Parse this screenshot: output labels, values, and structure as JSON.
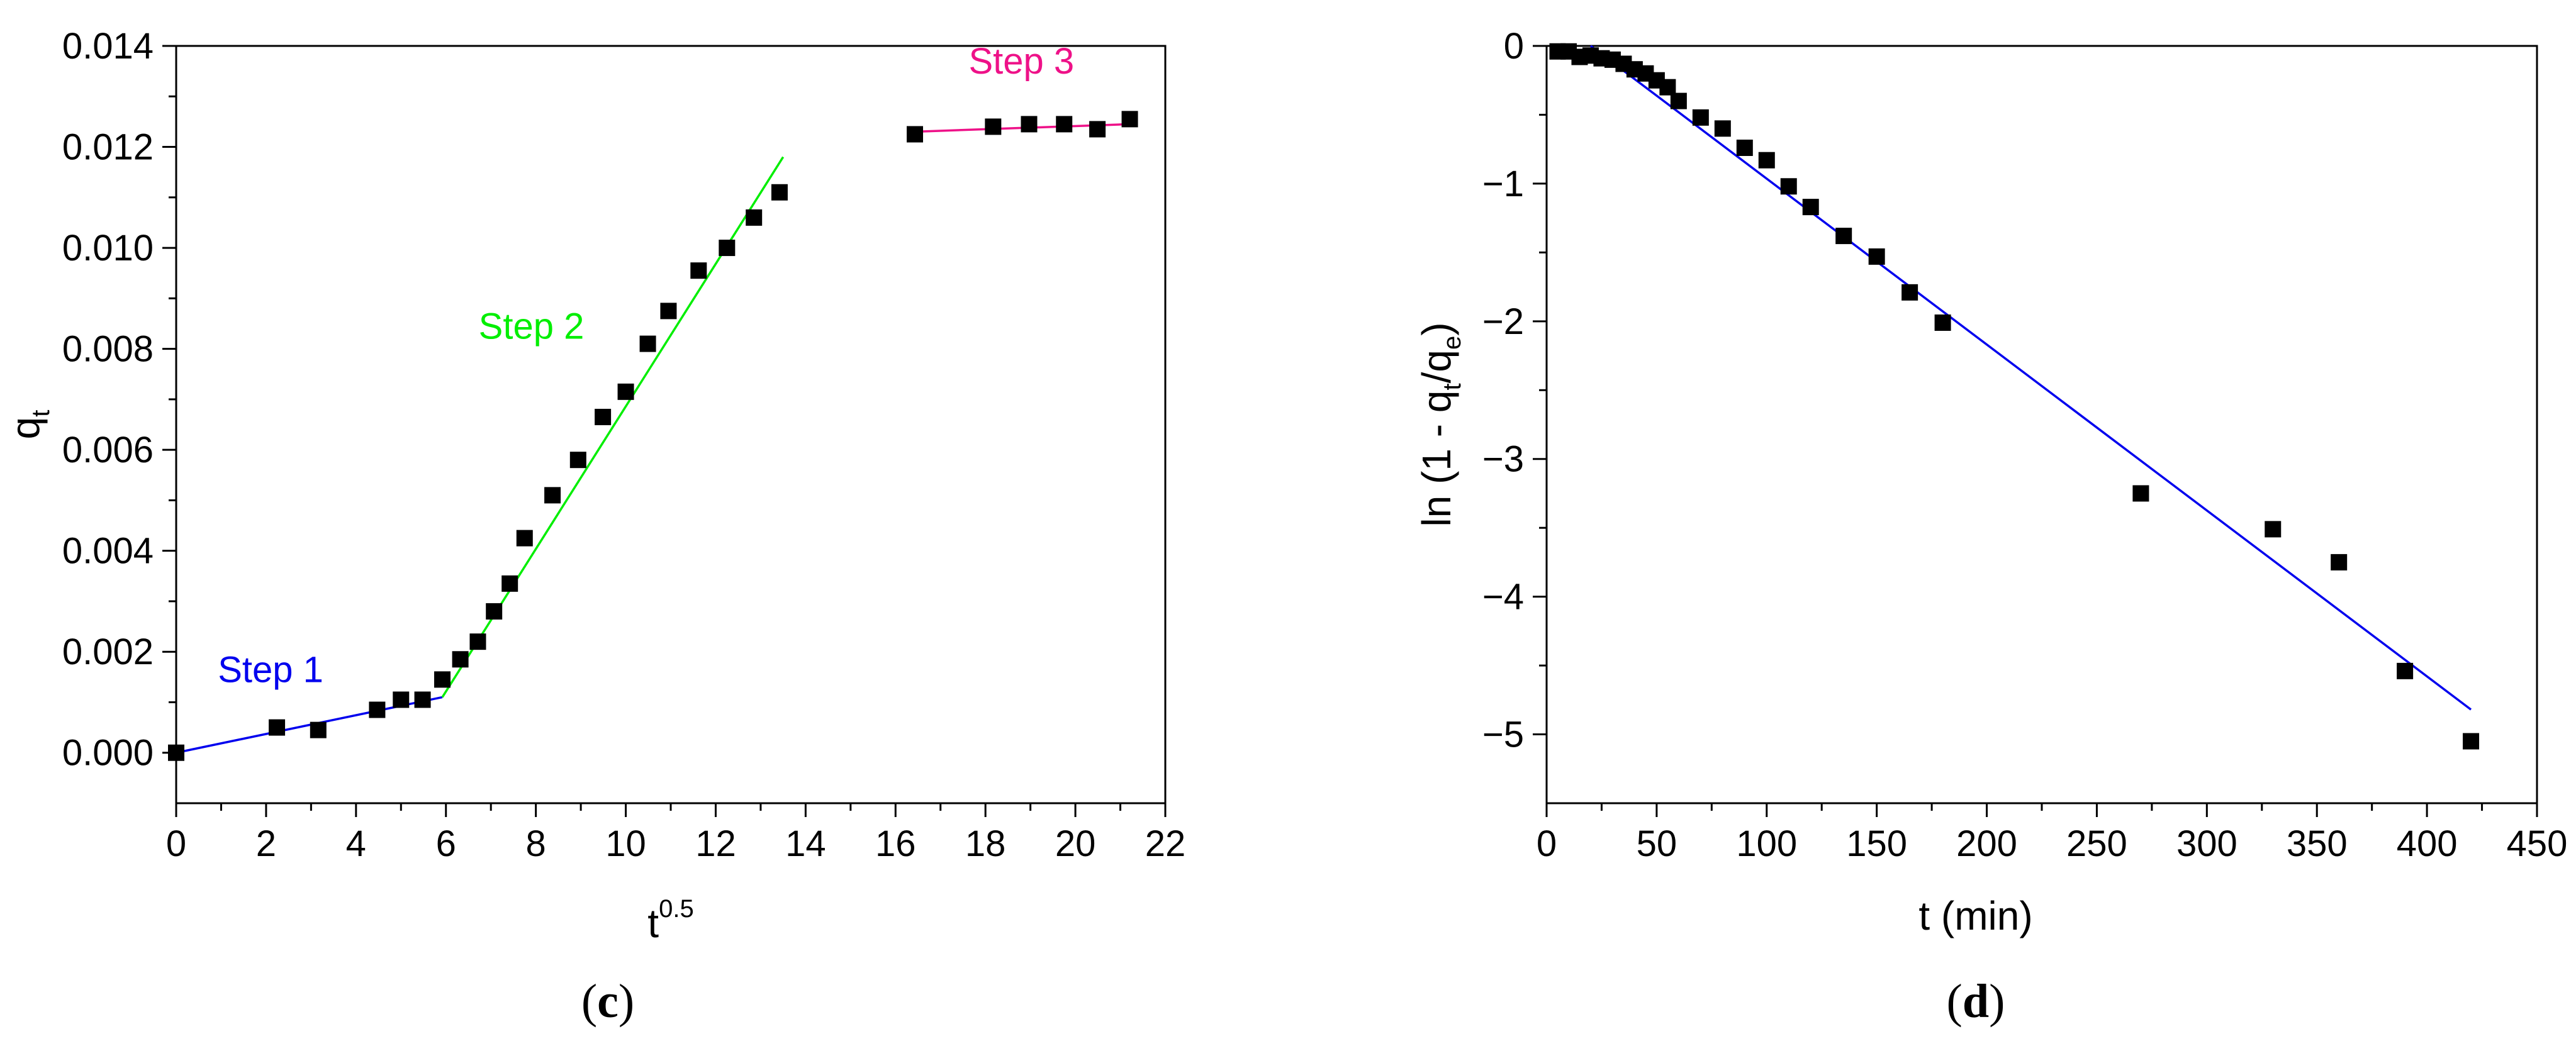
{
  "chart_data": [
    {
      "type": "scatter",
      "panel_label": "c",
      "xlabel_base": "t",
      "xlabel_sup": "0.5",
      "ylabel_base": "q",
      "ylabel_sub": "t",
      "xlim": [
        0,
        22
      ],
      "ylim": [
        -0.001,
        0.014
      ],
      "xticks": [
        0,
        2,
        4,
        6,
        8,
        10,
        12,
        14,
        16,
        18,
        20,
        22
      ],
      "yticks": [
        0,
        0.002,
        0.004,
        0.006,
        0.008,
        0.01,
        0.012,
        0.014
      ],
      "ytick_labels": [
        "0.000",
        "0.002",
        "0.004",
        "0.006",
        "0.008",
        "0.010",
        "0.012",
        "0.014"
      ],
      "points": {
        "x": [
          0,
          2.24,
          3.16,
          4.47,
          5.0,
          5.48,
          5.92,
          6.32,
          6.71,
          7.07,
          7.42,
          7.75,
          8.37,
          8.94,
          9.49,
          10.0,
          10.49,
          10.95,
          11.62,
          12.25,
          12.85,
          13.42,
          16.43,
          18.17,
          18.97,
          19.75,
          20.49,
          21.21
        ],
        "y": [
          0.0,
          0.0005,
          0.00045,
          0.00085,
          0.00105,
          0.00105,
          0.00145,
          0.00185,
          0.0022,
          0.0028,
          0.00335,
          0.00425,
          0.0051,
          0.0058,
          0.00665,
          0.00715,
          0.0081,
          0.00875,
          0.00955,
          0.01,
          0.0106,
          0.0111,
          0.01225,
          0.0124,
          0.01245,
          0.01245,
          0.01235,
          0.01255
        ]
      },
      "fits": [
        {
          "name": "Step 1",
          "color": "#0000ee",
          "x": [
            0,
            5.92
          ],
          "y": [
            0.0,
            0.0011
          ],
          "label_at": [
            2.1,
            0.0014
          ]
        },
        {
          "name": "Step 2",
          "color": "#00ee00",
          "x": [
            5.92,
            13.5
          ],
          "y": [
            0.0011,
            0.0118
          ],
          "label_at": [
            7.9,
            0.0082
          ]
        },
        {
          "name": "Step 3",
          "color": "#ee1188",
          "x": [
            16.4,
            21.2
          ],
          "y": [
            0.0123,
            0.01245
          ],
          "label_at": [
            18.8,
            0.01345
          ]
        }
      ]
    },
    {
      "type": "scatter",
      "panel_label": "d",
      "xlabel": "t (min)",
      "ylabel_parts": [
        "ln (1 - q",
        "t",
        "/q",
        "e",
        ")"
      ],
      "xlim": [
        0,
        450
      ],
      "ylim": [
        -5.5,
        0
      ],
      "xticks": [
        0,
        50,
        100,
        150,
        200,
        250,
        300,
        350,
        400,
        450
      ],
      "yticks": [
        0,
        -1,
        -2,
        -3,
        -4,
        -5
      ],
      "ytick_labels": [
        "0",
        "−1",
        "−2",
        "−3",
        "−4",
        "−5"
      ],
      "points": {
        "x": [
          5,
          10,
          15,
          20,
          25,
          30,
          35,
          40,
          45,
          50,
          55,
          60,
          70,
          80,
          90,
          100,
          110,
          120,
          135,
          150,
          165,
          180,
          270,
          330,
          360,
          390,
          420
        ],
        "y": [
          -0.04,
          -0.04,
          -0.08,
          -0.07,
          -0.09,
          -0.1,
          -0.13,
          -0.17,
          -0.2,
          -0.25,
          -0.3,
          -0.4,
          -0.52,
          -0.6,
          -0.74,
          -0.83,
          -1.02,
          -1.17,
          -1.38,
          -1.53,
          -1.79,
          -2.01,
          -3.25,
          -3.51,
          -3.75,
          -4.54,
          -5.05
        ]
      },
      "fits": [
        {
          "name": "fit",
          "color": "#0000ee",
          "x": [
            20,
            420
          ],
          "y": [
            0.0,
            -4.82
          ]
        }
      ]
    }
  ]
}
